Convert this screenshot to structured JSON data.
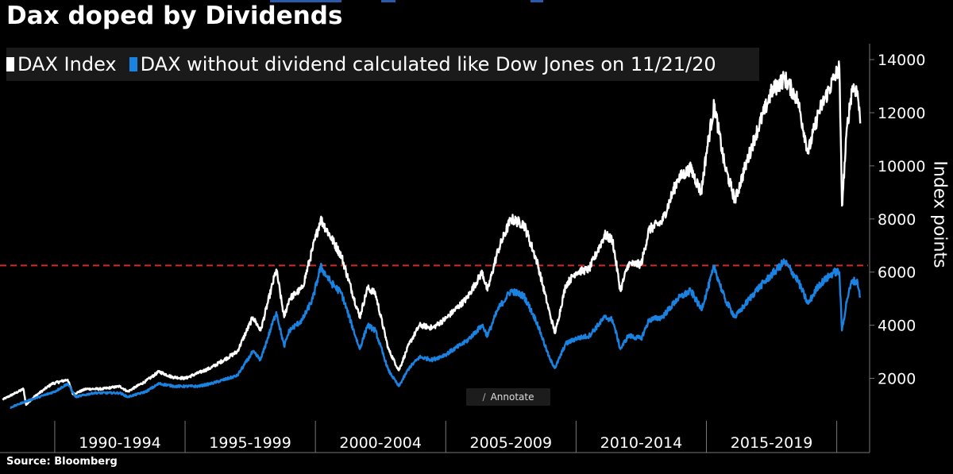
{
  "title": "Dax doped by Dividends",
  "source": "Source: Bloomberg",
  "annotate_button": {
    "label": "Annotate",
    "icon": "pencil-icon"
  },
  "colors": {
    "dax": "#ffffff",
    "dax_no_div": "#1a82e0",
    "ref_line": "#d42a2a",
    "grid": "#555555"
  },
  "chart_data": {
    "type": "line",
    "title": "Dax doped by Dividends",
    "xlabel": "",
    "ylabel": "Index points",
    "ylim": [
      700,
      14600
    ],
    "xlim": [
      1987.9,
      2021.2
    ],
    "yticks": [
      2000,
      4000,
      6000,
      8000,
      10000,
      12000,
      14000
    ],
    "ytick_labels": [
      "2000",
      "4000",
      "6000",
      "8000",
      "10000",
      "12000",
      "14000"
    ],
    "x_category_labels": [
      {
        "label": "1990-1994",
        "center": 1992.5
      },
      {
        "label": "1995-1999",
        "center": 1997.5
      },
      {
        "label": "2000-2004",
        "center": 2002.5
      },
      {
        "label": "2005-2009",
        "center": 2007.5
      },
      {
        "label": "2010-2014",
        "center": 2012.5
      },
      {
        "label": "2015-2019",
        "center": 2017.5
      }
    ],
    "x_separators": [
      1990,
      1995,
      2000,
      2005,
      2010,
      2015,
      2020
    ],
    "reference_line": {
      "y": 6250,
      "style": "dashed"
    },
    "legend": {
      "placement": "top-left"
    },
    "series": [
      {
        "name": "DAX Index",
        "points": [
          [
            1988.0,
            1200
          ],
          [
            1988.5,
            1450
          ],
          [
            1988.8,
            1600
          ],
          [
            1988.9,
            1000
          ],
          [
            1989.2,
            1300
          ],
          [
            1989.9,
            1800
          ],
          [
            1990.5,
            1950
          ],
          [
            1990.7,
            1400
          ],
          [
            1991.2,
            1600
          ],
          [
            1991.8,
            1600
          ],
          [
            1992.5,
            1700
          ],
          [
            1992.8,
            1500
          ],
          [
            1993.5,
            1900
          ],
          [
            1994.0,
            2250
          ],
          [
            1994.5,
            2050
          ],
          [
            1995.0,
            2000
          ],
          [
            1996.0,
            2400
          ],
          [
            1997.0,
            3000
          ],
          [
            1997.6,
            4300
          ],
          [
            1997.9,
            3800
          ],
          [
            1998.5,
            6100
          ],
          [
            1998.8,
            4300
          ],
          [
            1999.0,
            5000
          ],
          [
            1999.5,
            5400
          ],
          [
            1999.9,
            6900
          ],
          [
            2000.2,
            8000
          ],
          [
            2000.6,
            7300
          ],
          [
            2001.0,
            6600
          ],
          [
            2001.7,
            4300
          ],
          [
            2002.0,
            5400
          ],
          [
            2002.3,
            5200
          ],
          [
            2002.8,
            3100
          ],
          [
            2003.2,
            2300
          ],
          [
            2003.6,
            3300
          ],
          [
            2004.0,
            4000
          ],
          [
            2004.5,
            3900
          ],
          [
            2005.0,
            4250
          ],
          [
            2005.8,
            5000
          ],
          [
            2006.4,
            6000
          ],
          [
            2006.6,
            5300
          ],
          [
            2007.0,
            6800
          ],
          [
            2007.5,
            8000
          ],
          [
            2008.0,
            7800
          ],
          [
            2008.5,
            6400
          ],
          [
            2009.0,
            4400
          ],
          [
            2009.2,
            3700
          ],
          [
            2009.6,
            5500
          ],
          [
            2010.0,
            6000
          ],
          [
            2010.5,
            6100
          ],
          [
            2011.1,
            7400
          ],
          [
            2011.4,
            7200
          ],
          [
            2011.7,
            5300
          ],
          [
            2012.0,
            6300
          ],
          [
            2012.5,
            6300
          ],
          [
            2012.8,
            7600
          ],
          [
            2013.3,
            7900
          ],
          [
            2013.9,
            9500
          ],
          [
            2014.4,
            9900
          ],
          [
            2014.8,
            9000
          ],
          [
            2015.0,
            10500
          ],
          [
            2015.3,
            12300
          ],
          [
            2015.7,
            10000
          ],
          [
            2016.1,
            8700
          ],
          [
            2016.5,
            10000
          ],
          [
            2016.9,
            11200
          ],
          [
            2017.5,
            12800
          ],
          [
            2018.0,
            13300
          ],
          [
            2018.5,
            12500
          ],
          [
            2018.9,
            10500
          ],
          [
            2019.3,
            12000
          ],
          [
            2019.9,
            13300
          ],
          [
            2020.1,
            13700
          ],
          [
            2020.2,
            8500
          ],
          [
            2020.4,
            11500
          ],
          [
            2020.6,
            13000
          ],
          [
            2020.8,
            12800
          ],
          [
            2020.9,
            11600
          ]
        ]
      },
      {
        "name": "DAX without dividend calculated like Dow Jones on 11/21/20",
        "points": [
          [
            1988.3,
            900
          ],
          [
            1988.8,
            1100
          ],
          [
            1989.4,
            1300
          ],
          [
            1990.0,
            1500
          ],
          [
            1990.5,
            1800
          ],
          [
            1990.8,
            1300
          ],
          [
            1991.5,
            1450
          ],
          [
            1992.5,
            1450
          ],
          [
            1992.8,
            1300
          ],
          [
            1993.5,
            1500
          ],
          [
            1994.0,
            1800
          ],
          [
            1994.6,
            1700
          ],
          [
            1995.5,
            1700
          ],
          [
            1996.0,
            1800
          ],
          [
            1997.0,
            2100
          ],
          [
            1997.6,
            3000
          ],
          [
            1997.9,
            2700
          ],
          [
            1998.5,
            4500
          ],
          [
            1998.8,
            3200
          ],
          [
            1999.0,
            3800
          ],
          [
            1999.5,
            4200
          ],
          [
            1999.9,
            5000
          ],
          [
            2000.2,
            6200
          ],
          [
            2000.6,
            5600
          ],
          [
            2001.0,
            5200
          ],
          [
            2001.7,
            3100
          ],
          [
            2002.0,
            4000
          ],
          [
            2002.3,
            3800
          ],
          [
            2002.8,
            2300
          ],
          [
            2003.2,
            1700
          ],
          [
            2003.6,
            2400
          ],
          [
            2004.0,
            2800
          ],
          [
            2004.5,
            2700
          ],
          [
            2005.0,
            2900
          ],
          [
            2005.8,
            3400
          ],
          [
            2006.4,
            4000
          ],
          [
            2006.6,
            3600
          ],
          [
            2007.0,
            4600
          ],
          [
            2007.5,
            5300
          ],
          [
            2008.0,
            5100
          ],
          [
            2008.5,
            4100
          ],
          [
            2009.0,
            2700
          ],
          [
            2009.2,
            2400
          ],
          [
            2009.6,
            3300
          ],
          [
            2010.0,
            3500
          ],
          [
            2010.5,
            3600
          ],
          [
            2011.1,
            4300
          ],
          [
            2011.4,
            4200
          ],
          [
            2011.7,
            3100
          ],
          [
            2012.0,
            3600
          ],
          [
            2012.5,
            3500
          ],
          [
            2012.8,
            4200
          ],
          [
            2013.3,
            4300
          ],
          [
            2013.9,
            5000
          ],
          [
            2014.4,
            5300
          ],
          [
            2014.8,
            4600
          ],
          [
            2015.0,
            5200
          ],
          [
            2015.3,
            6200
          ],
          [
            2015.7,
            5000
          ],
          [
            2016.1,
            4300
          ],
          [
            2016.5,
            4800
          ],
          [
            2016.9,
            5300
          ],
          [
            2017.5,
            5900
          ],
          [
            2018.0,
            6400
          ],
          [
            2018.5,
            5700
          ],
          [
            2018.9,
            4800
          ],
          [
            2019.3,
            5500
          ],
          [
            2019.9,
            6000
          ],
          [
            2020.1,
            6000
          ],
          [
            2020.2,
            3800
          ],
          [
            2020.4,
            5000
          ],
          [
            2020.6,
            5700
          ],
          [
            2020.8,
            5600
          ],
          [
            2020.9,
            5100
          ]
        ]
      }
    ]
  }
}
